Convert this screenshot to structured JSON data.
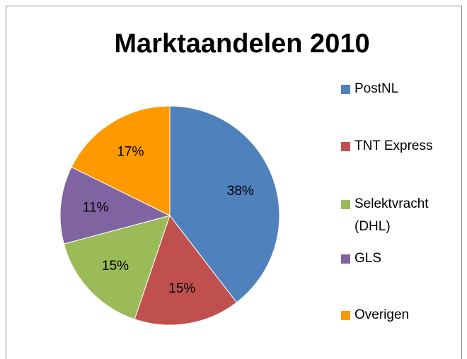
{
  "chart_data": {
    "type": "pie",
    "title": "Marktaandelen 2010",
    "categories": [
      "PostNL",
      "TNT Express",
      "Selektvracht (DHL)",
      "GLS",
      "Overigen"
    ],
    "values": [
      38,
      15,
      15,
      11,
      17
    ],
    "value_labels": [
      "38%",
      "15%",
      "15%",
      "11%",
      "17%"
    ],
    "colors": [
      "#4f81bd",
      "#c0504d",
      "#9bbb59",
      "#8064a2",
      "#ff9900"
    ],
    "legend": "right"
  }
}
